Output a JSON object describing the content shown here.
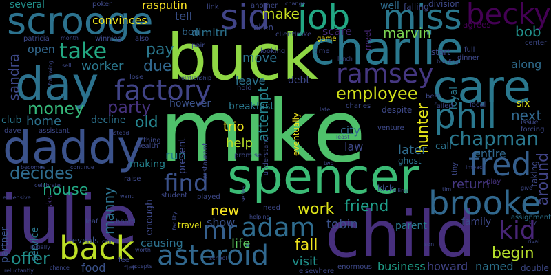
{
  "words": [
    {
      "text": "mike",
      "color": "#4fc16b"
    },
    {
      "text": "buck",
      "color": "#8fd744"
    },
    {
      "text": "spencer",
      "color": "#3bbb75"
    },
    {
      "text": "julie",
      "color": "#46327e"
    },
    {
      "text": "child",
      "color": "#472f7d"
    },
    {
      "text": "charlie",
      "color": "#2a788e"
    },
    {
      "text": "daddy",
      "color": "#3b528b"
    },
    {
      "text": "day",
      "color": "#2c728e"
    },
    {
      "text": "care",
      "color": "#2a788e"
    },
    {
      "text": "scrooge",
      "color": "#2c728e"
    },
    {
      "text": "miss",
      "color": "#2a788e"
    },
    {
      "text": "job",
      "color": "#22a884"
    },
    {
      "text": "sid",
      "color": "#414487"
    },
    {
      "text": "becky",
      "color": "#440154"
    },
    {
      "text": "brooke",
      "color": "#31688e"
    },
    {
      "text": "phil",
      "color": "#2a788e"
    },
    {
      "text": "fred",
      "color": "#355f8d"
    },
    {
      "text": "asteroid",
      "color": "#31688e"
    },
    {
      "text": "back",
      "color": "#bddf26"
    },
    {
      "text": "factory",
      "color": "#414487"
    },
    {
      "text": "ramsey",
      "color": "#453781"
    },
    {
      "text": "mr",
      "color": "#355f8d"
    },
    {
      "text": "adam",
      "color": "#2f6c8e"
    },
    {
      "text": "kid",
      "color": "#482576"
    },
    {
      "text": "take",
      "color": "#23a983"
    },
    {
      "text": "find",
      "color": "#3b528b"
    },
    {
      "text": "chapman",
      "color": "#2a788e"
    },
    {
      "text": "decides",
      "color": "#2f6c8e"
    },
    {
      "text": "party",
      "color": "#46327e"
    },
    {
      "text": "money",
      "color": "#35b779"
    },
    {
      "text": "employee",
      "color": "#d2e21b"
    },
    {
      "text": "begin",
      "color": "#b5de2b"
    },
    {
      "text": "offer",
      "color": "#21918c"
    },
    {
      "text": "work",
      "color": "#dde318"
    },
    {
      "text": "friend",
      "color": "#1f9e89"
    },
    {
      "text": "house",
      "color": "#22a884"
    },
    {
      "text": "fall",
      "color": "#f1e51d"
    },
    {
      "text": "new",
      "color": "#f8e621"
    },
    {
      "text": "marvin",
      "color": "#7ad151"
    },
    {
      "text": "make",
      "color": "#c8e020"
    },
    {
      "text": "hunter",
      "color": "#e5e419"
    },
    {
      "text": "attempt",
      "color": "#25838e"
    },
    {
      "text": "sandra",
      "color": "#3e4989"
    },
    {
      "text": "bob",
      "color": "#21918c"
    },
    {
      "text": "pay",
      "color": "#2a788e"
    },
    {
      "text": "old",
      "color": "#25848e"
    },
    {
      "text": "due",
      "color": "#31688e"
    },
    {
      "text": "worker",
      "color": "#2a788e"
    },
    {
      "text": "open",
      "color": "#31688e"
    },
    {
      "text": "return",
      "color": "#453781"
    },
    {
      "text": "next",
      "color": "#31688e"
    },
    {
      "text": "around",
      "color": "#414487"
    },
    {
      "text": "manny",
      "color": "#2c728e"
    },
    {
      "text": "trio",
      "color": "#f1e51d"
    },
    {
      "text": "help",
      "color": "#b8de29"
    },
    {
      "text": "home",
      "color": "#2c728e"
    },
    {
      "text": "show",
      "color": "#3b528b"
    },
    {
      "text": "life",
      "color": "#5ec962"
    },
    {
      "text": "visit",
      "color": "#21918c"
    },
    {
      "text": "business",
      "color": "#1f9e89"
    },
    {
      "text": "howard",
      "color": "#414487"
    },
    {
      "text": "named",
      "color": "#2c728e"
    },
    {
      "text": "food",
      "color": "#3b528b"
    },
    {
      "text": "causing",
      "color": "#2c728e"
    },
    {
      "text": "later",
      "color": "#2f6c8e"
    },
    {
      "text": "law",
      "color": "#3e4989"
    },
    {
      "text": "city",
      "color": "#31688e"
    },
    {
      "text": "tobin",
      "color": "#3b528b"
    },
    {
      "text": "run",
      "color": "#26818e"
    },
    {
      "text": "making",
      "color": "#25838e"
    },
    {
      "text": "entire",
      "color": "#31688e"
    },
    {
      "text": "call",
      "color": "#2c728e"
    },
    {
      "text": "decline",
      "color": "#2c728e"
    },
    {
      "text": "however",
      "color": "#3b528b"
    },
    {
      "text": "leave",
      "color": "#2c728e"
    },
    {
      "text": "debt",
      "color": "#3e4989"
    },
    {
      "text": "move",
      "color": "#2c728e"
    },
    {
      "text": "scare",
      "color": "#472d7b"
    },
    {
      "text": "dimitri",
      "color": "#2c728e"
    },
    {
      "text": "ben",
      "color": "#31688e"
    },
    {
      "text": "tell",
      "color": "#3b528b"
    },
    {
      "text": "convinces",
      "color": "#f1e51d"
    },
    {
      "text": "rasputin",
      "color": "#fde725"
    },
    {
      "text": "several",
      "color": "#21918c"
    },
    {
      "text": "six",
      "color": "#e2e418"
    },
    {
      "text": "breakfast",
      "color": "#2a788e"
    },
    {
      "text": "present",
      "color": "#3e4989"
    },
    {
      "text": "enough",
      "color": "#3e4989"
    },
    {
      "text": "club",
      "color": "#2a788e"
    },
    {
      "text": "along",
      "color": "#2f6c8e"
    },
    {
      "text": "family",
      "color": "#3e4989"
    },
    {
      "text": "double",
      "color": "#3e4989"
    },
    {
      "text": "asks",
      "color": "#46327e"
    },
    {
      "text": "eventually",
      "color": "#f1e51d"
    },
    {
      "text": "partner",
      "color": "#3b528b"
    },
    {
      "text": "service",
      "color": "#2a788e"
    },
    {
      "text": "parent",
      "color": "#2a788e"
    },
    {
      "text": "kick",
      "color": "#3b528b"
    },
    {
      "text": "travel",
      "color": "#e5e419"
    },
    {
      "text": "reveals",
      "color": "#3b528b"
    },
    {
      "text": "ellen",
      "color": "#3e4989"
    },
    {
      "text": "meet",
      "color": "#482878"
    },
    {
      "text": "well",
      "color": "#2f6c8e"
    },
    {
      "text": "assignment",
      "color": "#2c728e"
    },
    {
      "text": "agrees",
      "color": "#440154"
    },
    {
      "text": "ghost",
      "color": "#2c728e"
    },
    {
      "text": "start",
      "color": "#3e4989"
    },
    {
      "text": "full",
      "color": "#3e4989"
    },
    {
      "text": "loyal",
      "color": "#2a788e"
    },
    {
      "text": "play",
      "color": "#46327e"
    },
    {
      "text": "center",
      "color": "#3e4989"
    },
    {
      "text": "division",
      "color": "#3e4989"
    },
    {
      "text": "falling",
      "color": "#3e4989"
    },
    {
      "text": "another",
      "color": "#3e4989"
    },
    {
      "text": "link",
      "color": "#3e4989"
    },
    {
      "text": "poker",
      "color": "#3e4989"
    },
    {
      "text": "also",
      "color": "#3e4989"
    },
    {
      "text": "winning",
      "color": "#3e4989"
    },
    {
      "text": "patricia",
      "color": "#3e4989"
    },
    {
      "text": "month",
      "color": "#3e4989"
    },
    {
      "text": "pair",
      "color": "#3e4989"
    },
    {
      "text": "client",
      "color": "#3e4989"
    },
    {
      "text": "drake",
      "color": "#3e4989"
    },
    {
      "text": "game",
      "color": "#f1e51d"
    },
    {
      "text": "time",
      "color": "#3e4989"
    },
    {
      "text": "lunch",
      "color": "#3e4989"
    },
    {
      "text": "looking",
      "color": "#3e4989"
    },
    {
      "text": "relationship",
      "color": "#3e4989"
    },
    {
      "text": "lose",
      "color": "#3e4989"
    },
    {
      "text": "sell",
      "color": "#3e4989"
    },
    {
      "text": "following",
      "color": "#3e4989"
    },
    {
      "text": "change",
      "color": "#3e4989"
    },
    {
      "text": "building",
      "color": "#3e4989"
    },
    {
      "text": "dinner",
      "color": "#3e4989"
    },
    {
      "text": "hold",
      "color": "#3e4989"
    },
    {
      "text": "best",
      "color": "#3e4989"
    },
    {
      "text": "failed",
      "color": "#3e4989"
    },
    {
      "text": "local",
      "color": "#3e4989"
    },
    {
      "text": "despite",
      "color": "#3e4989"
    },
    {
      "text": "charles",
      "color": "#3e4989"
    },
    {
      "text": "late",
      "color": "#3e4989"
    },
    {
      "text": "elsewhere",
      "color": "#3e4989"
    },
    {
      "text": "issue",
      "color": "#3e4989"
    },
    {
      "text": "forcing",
      "color": "#3e4989"
    },
    {
      "text": "dave",
      "color": "#3e4989"
    },
    {
      "text": "assistant",
      "color": "#3e4989"
    },
    {
      "text": "instead",
      "color": "#3e4989"
    },
    {
      "text": "thing",
      "color": "#3e4989"
    },
    {
      "text": "health",
      "color": "#3e4989"
    },
    {
      "text": "restaurant",
      "color": "#3e4989"
    },
    {
      "text": "understand",
      "color": "#3e4989"
    },
    {
      "text": "promise",
      "color": "#3e4989"
    },
    {
      "text": "least",
      "color": "#3e4989"
    },
    {
      "text": "venture",
      "color": "#3e4989"
    },
    {
      "text": "impact",
      "color": "#3e4989"
    },
    {
      "text": "taking",
      "color": "#3e4989"
    },
    {
      "text": "becomes",
      "color": "#3e4989"
    },
    {
      "text": "continue",
      "color": "#3e4989"
    },
    {
      "text": "two",
      "color": "#3e4989"
    },
    {
      "text": "celebrate",
      "color": "#3e4989"
    },
    {
      "text": "raise",
      "color": "#3e4989"
    },
    {
      "text": "expensive",
      "color": "#3e4989"
    },
    {
      "text": "want",
      "color": "#3e4989"
    },
    {
      "text": "student",
      "color": "#3e4989"
    },
    {
      "text": "played",
      "color": "#3e4989"
    },
    {
      "text": "helping",
      "color": "#3e4989"
    },
    {
      "text": "calling",
      "color": "#3e4989"
    },
    {
      "text": "tim",
      "color": "#3e4989"
    },
    {
      "text": "give",
      "color": "#3e4989"
    },
    {
      "text": "tiny",
      "color": "#3e4989"
    },
    {
      "text": "try",
      "color": "#3e4989"
    },
    {
      "text": "leaf",
      "color": "#3e4989"
    },
    {
      "text": "board",
      "color": "#3e4989"
    },
    {
      "text": "called",
      "color": "#3e4989"
    },
    {
      "text": "worth",
      "color": "#3e4989"
    },
    {
      "text": "accepts",
      "color": "#3e4989"
    },
    {
      "text": "fee",
      "color": "#3e4989"
    },
    {
      "text": "flee",
      "color": "#3e4989"
    },
    {
      "text": "chance",
      "color": "#3e4989"
    },
    {
      "text": "initially",
      "color": "#3e4989"
    },
    {
      "text": "reluctantly",
      "color": "#3e4989"
    },
    {
      "text": "school",
      "color": "#3e4989"
    },
    {
      "text": "rival",
      "color": "#3e4989"
    },
    {
      "text": "son",
      "color": "#3e4989"
    },
    {
      "text": "enormous",
      "color": "#3e4989"
    },
    {
      "text": "facility",
      "color": "#3e4989"
    },
    {
      "text": "need",
      "color": "#3e4989"
    },
    {
      "text": "series",
      "color": "#3e4989"
    }
  ]
}
